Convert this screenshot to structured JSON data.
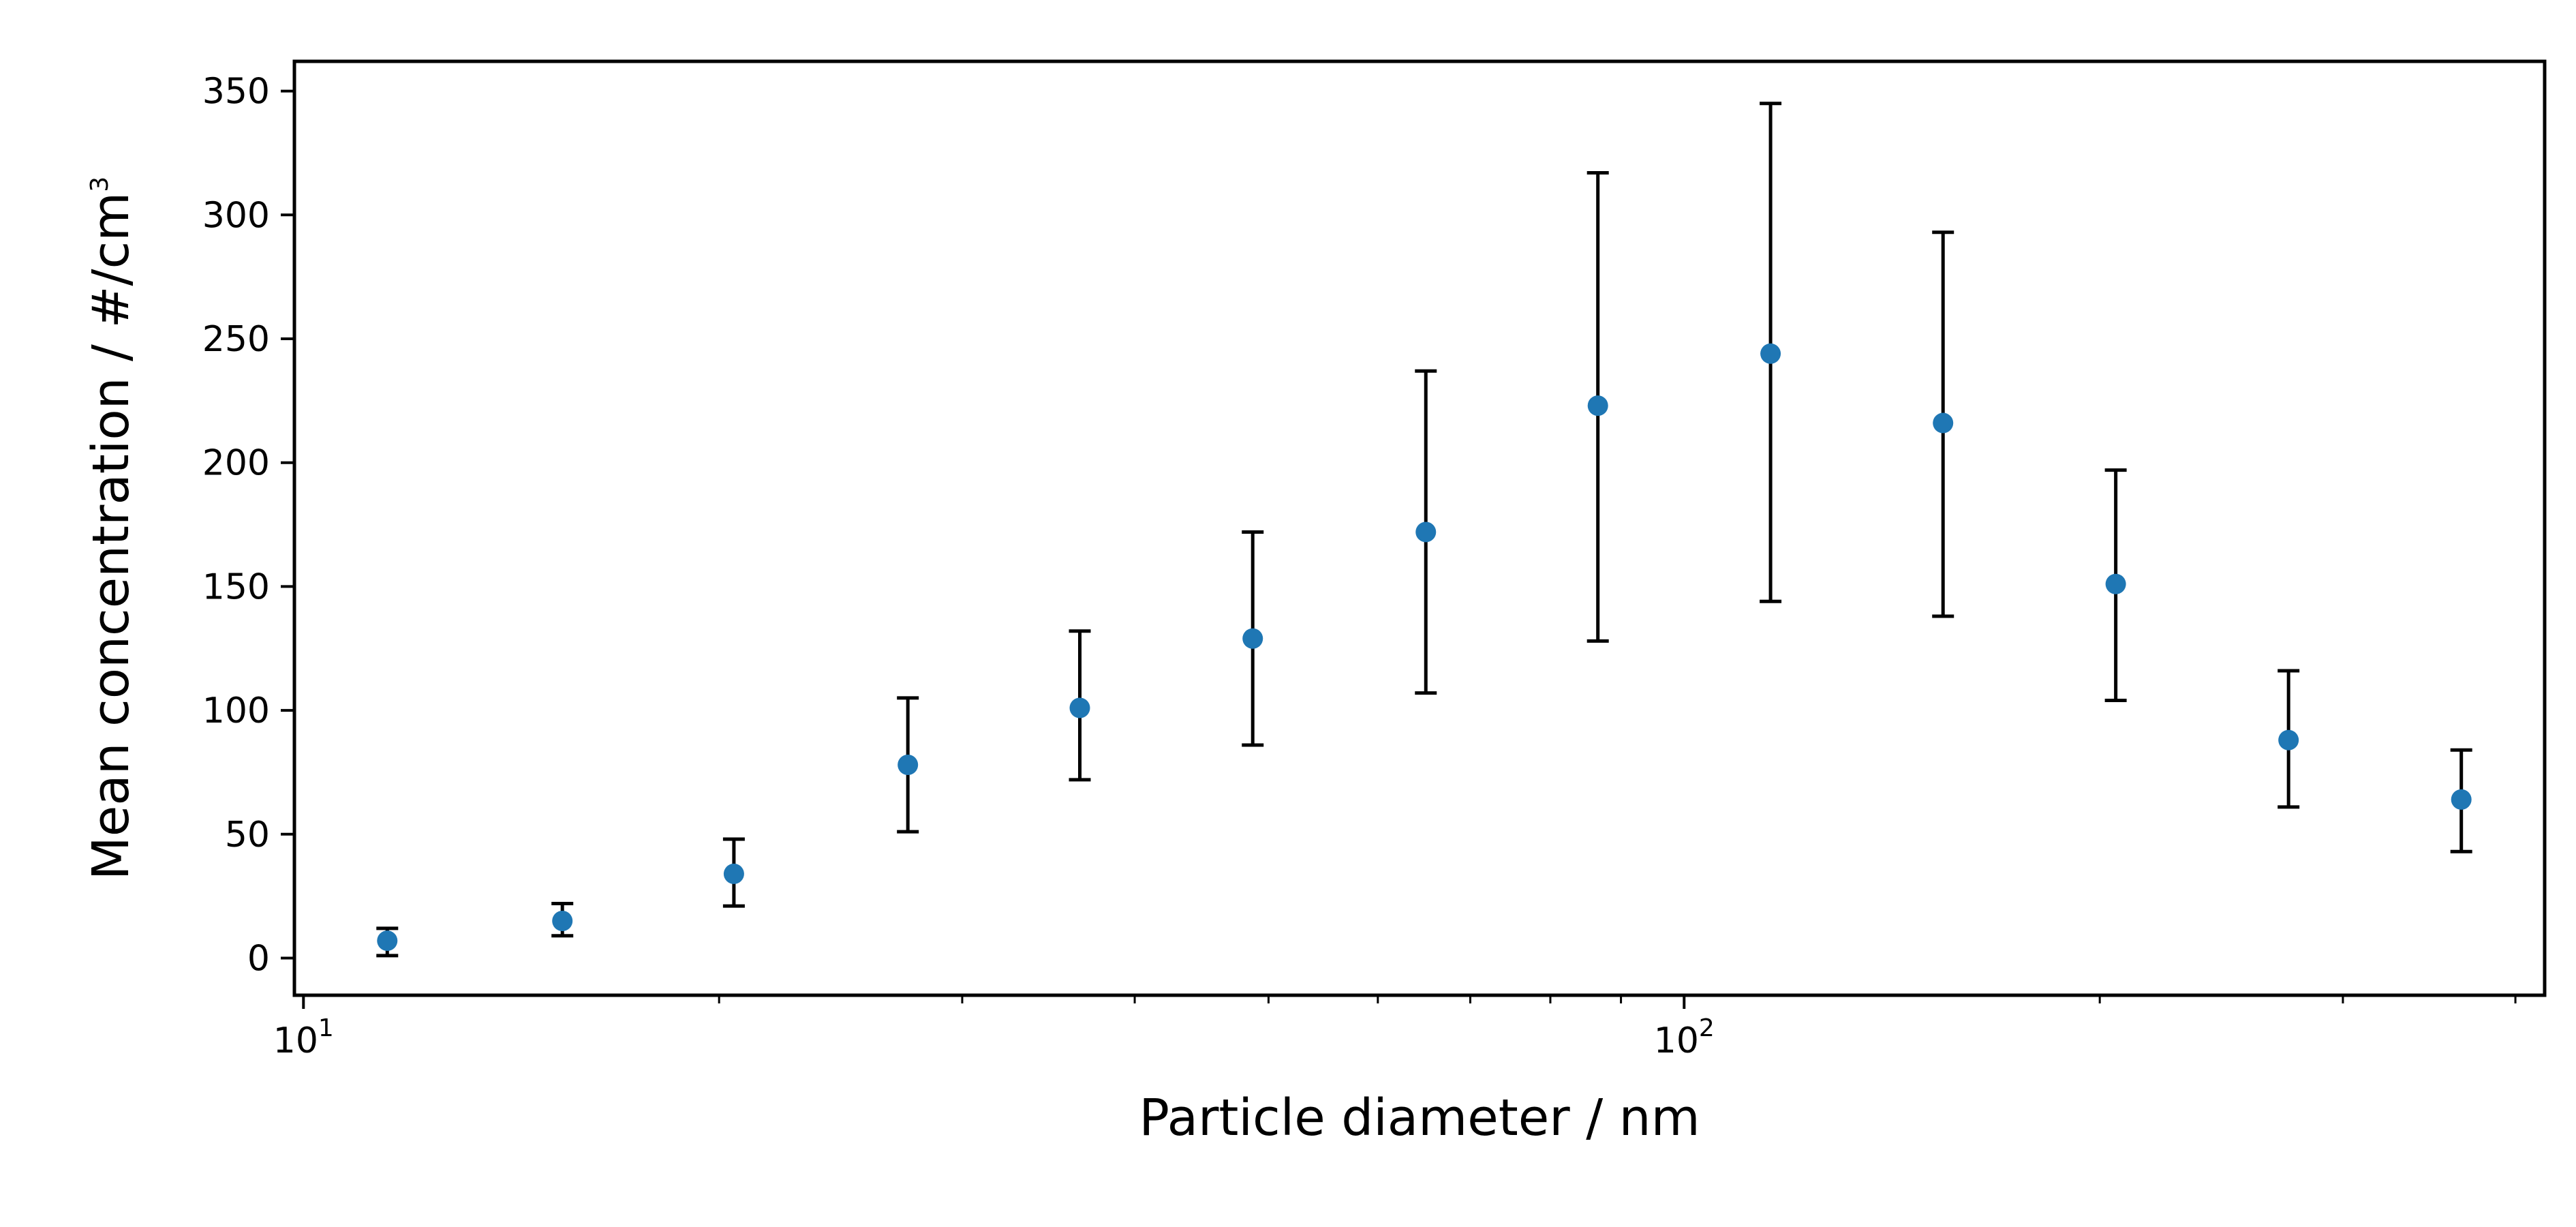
{
  "chart_data": {
    "type": "scatter",
    "title": "",
    "xlabel": "Particle diameter / nm",
    "ylabel_main": "Mean concentration / #/cm",
    "ylabel_superscript": "3",
    "xscale": "log",
    "xlim": [
      9.85,
      420
    ],
    "ylim": [
      -15,
      362
    ],
    "grid": false,
    "legend": "none",
    "x_ticks": [
      {
        "value": 10,
        "base": "10",
        "exp": "1"
      },
      {
        "value": 100,
        "base": "10",
        "exp": "2"
      }
    ],
    "y_ticks": [
      0,
      50,
      100,
      150,
      200,
      250,
      300,
      350
    ],
    "colors": {
      "marker": "#1f77b4",
      "errorbar": "#000000",
      "axes": "#000000"
    },
    "series": [
      {
        "x": [
          11.5,
          15.4,
          20.5,
          27.4,
          36.5,
          48.7,
          65.0,
          86.6,
          115.5,
          154.0,
          205.4,
          274.0,
          365.5
        ],
        "y": [
          7,
          15,
          34,
          78,
          101,
          129,
          172,
          223,
          244,
          216,
          151,
          88,
          64
        ],
        "y_lower": [
          1,
          9,
          21,
          51,
          72,
          86,
          107,
          128,
          144,
          138,
          104,
          61,
          43
        ],
        "y_upper": [
          12,
          22,
          48,
          105,
          132,
          172,
          237,
          317,
          345,
          293,
          197,
          116,
          84
        ]
      }
    ]
  }
}
